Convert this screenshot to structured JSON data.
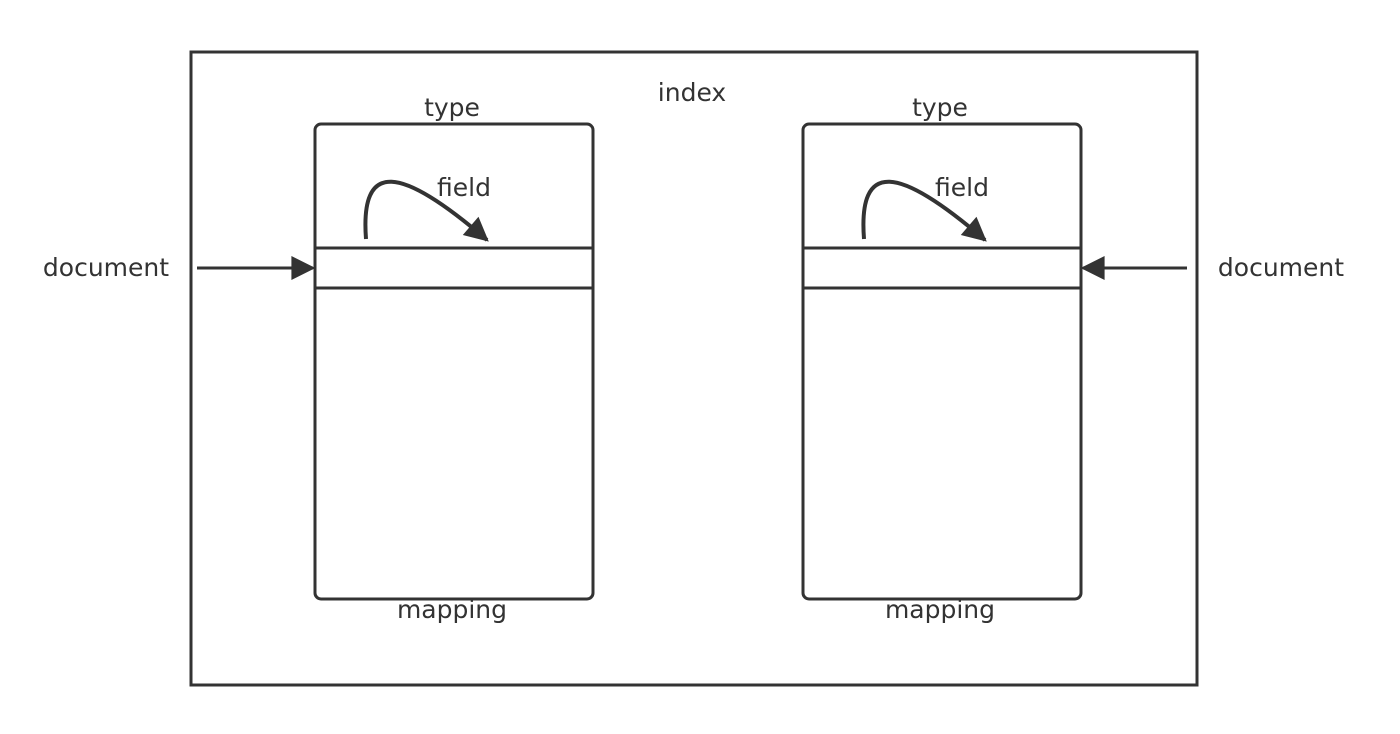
{
  "index": {
    "label": "index"
  },
  "left_type": {
    "label": "type",
    "field_label": "field",
    "mapping_label": "mapping"
  },
  "right_type": {
    "label": "type",
    "field_label": "field",
    "mapping_label": "mapping"
  },
  "left_document": {
    "label": "document"
  },
  "right_document": {
    "label": "document"
  },
  "colors": {
    "stroke": "#333333",
    "background": "#ffffff"
  }
}
